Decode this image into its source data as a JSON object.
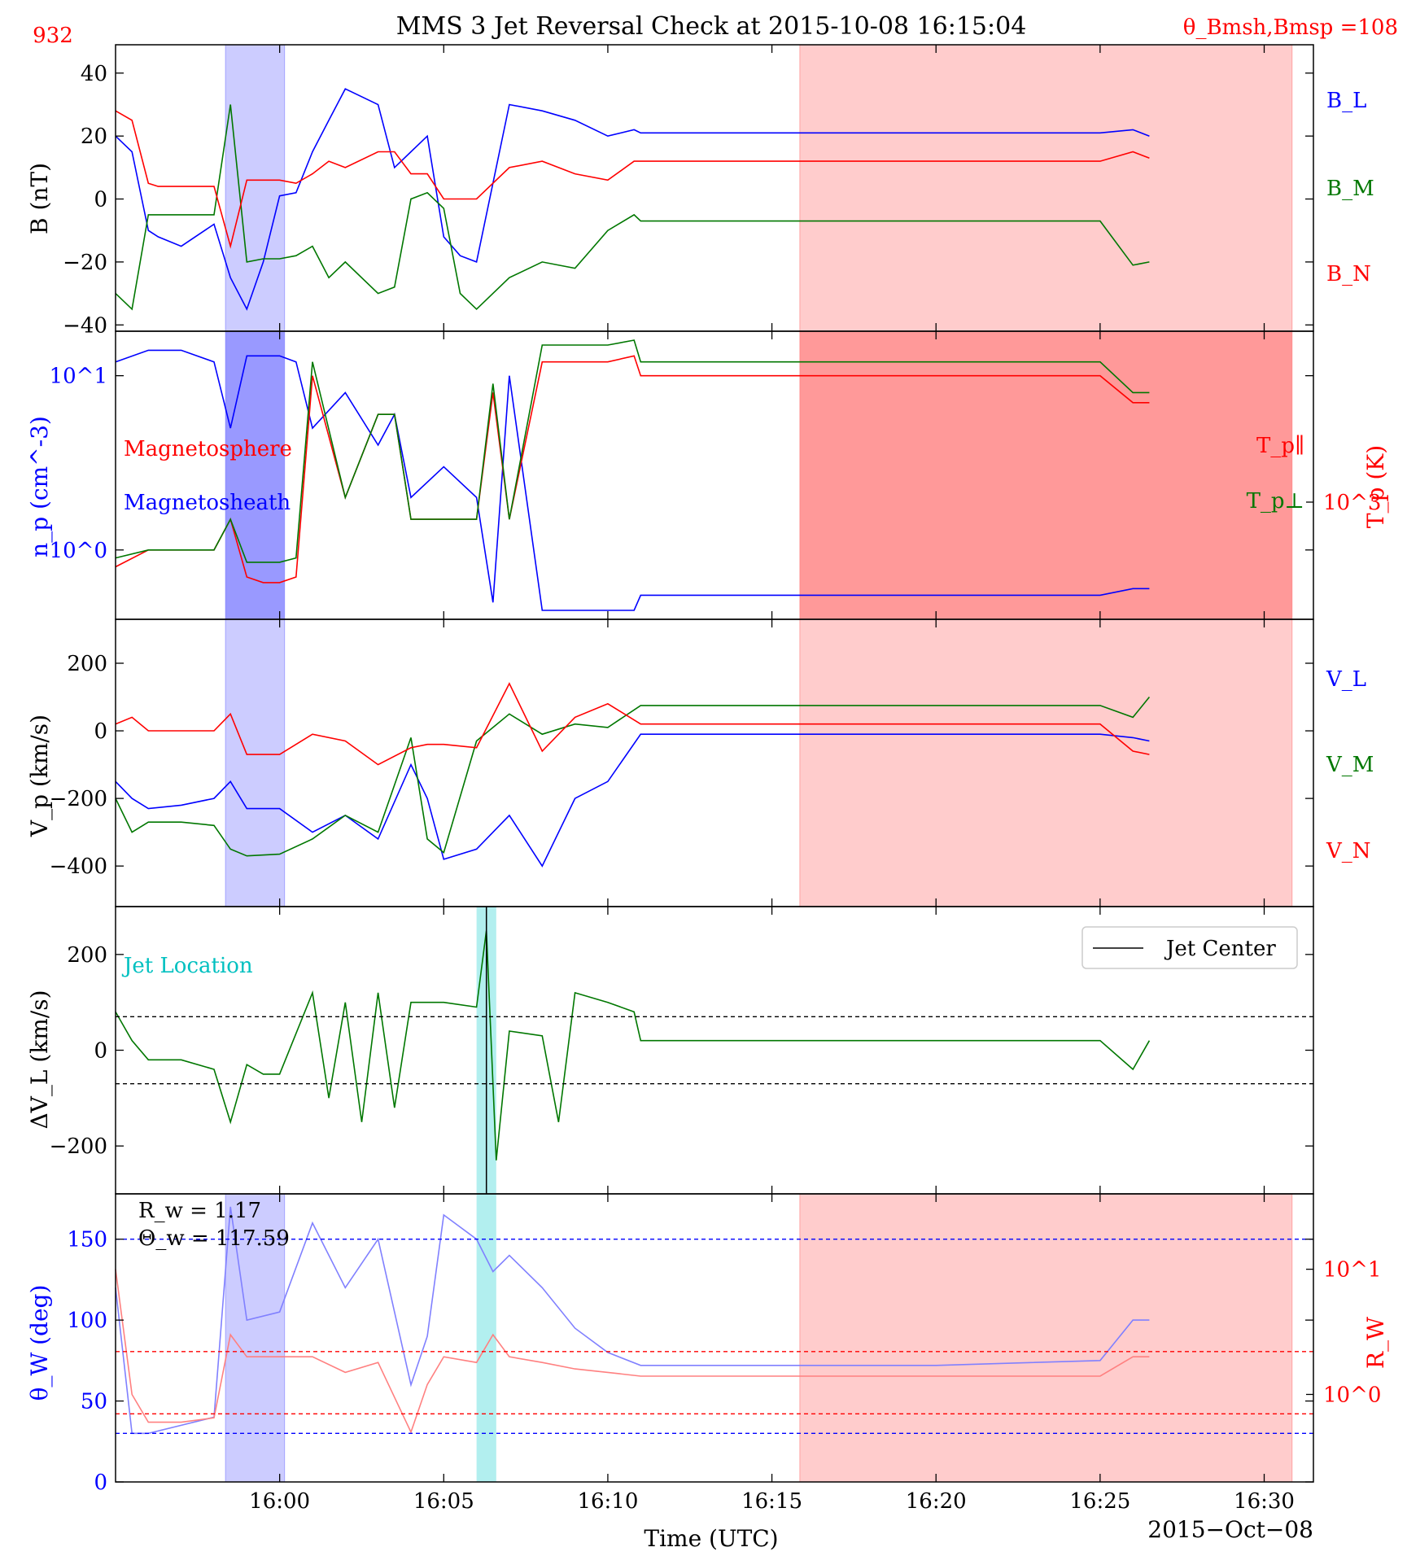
{
  "figure": {
    "title": "MMS 3 Jet Reversal Check at 2015-10-08 16:15:04",
    "event_id": "932",
    "theta_label": "θ_Bmsh,Bmsp =108",
    "xlabel": "Time (UTC)",
    "date_label": "2015−Oct−08",
    "colors": {
      "blue": "#0000ff",
      "red": "#ff0000",
      "green": "#007700",
      "cyan": "#00c0c0",
      "msh_band": "#b3b3ff",
      "msp_band": "#ffb3b3"
    }
  },
  "chart_data": [
    {
      "type": "line",
      "panel": "B",
      "ylabel": "B (nT)",
      "ylim": [
        -42,
        49
      ],
      "yticks": [
        "40",
        "20",
        "0",
        "−20",
        "−40"
      ],
      "ytick_values": [
        40,
        20,
        0,
        -20,
        -40
      ],
      "legend": [
        "B_L",
        "B_M",
        "B_N"
      ],
      "series": [
        {
          "name": "B_L",
          "color": "#0000ff",
          "x": [
            0,
            0.5,
            1,
            1.3,
            2,
            3,
            3.5,
            4,
            4.5,
            5,
            5.5,
            6,
            6.5,
            7,
            8,
            8.5,
            9,
            9.5,
            10,
            10.5,
            11,
            12,
            13,
            14,
            15,
            15.8,
            16,
            20,
            25,
            30,
            31,
            31.5
          ],
          "y": [
            20,
            15,
            -10,
            -12,
            -15,
            -8,
            -25,
            -35,
            -20,
            1,
            2,
            15,
            25,
            35,
            30,
            10,
            15,
            20,
            -12,
            -18,
            -20,
            30,
            28,
            25,
            20,
            22,
            21,
            21,
            21,
            21,
            22,
            20
          ]
        },
        {
          "name": "B_M",
          "color": "#007700",
          "x": [
            0,
            0.5,
            1,
            1.3,
            2,
            3,
            3.5,
            4,
            4.5,
            5,
            5.5,
            6,
            6.5,
            7,
            8,
            8.5,
            9,
            9.5,
            10,
            10.5,
            11,
            12,
            13,
            14,
            15,
            15.8,
            16,
            20,
            25,
            30,
            31,
            31.5
          ],
          "y": [
            -30,
            -35,
            -5,
            -5,
            -5,
            -5,
            30,
            -20,
            -19,
            -19,
            -18,
            -15,
            -25,
            -20,
            -30,
            -28,
            0,
            2,
            -3,
            -30,
            -35,
            -25,
            -20,
            -22,
            -10,
            -5,
            -7,
            -7,
            -7,
            -7,
            -21,
            -20
          ]
        },
        {
          "name": "B_N",
          "color": "#ff0000",
          "x": [
            0,
            0.5,
            1,
            1.3,
            2,
            3,
            3.5,
            4,
            4.5,
            5,
            5.5,
            6,
            6.5,
            7,
            8,
            8.5,
            9,
            9.5,
            10,
            10.5,
            11,
            12,
            13,
            14,
            15,
            15.8,
            16,
            20,
            25,
            30,
            31,
            31.5
          ],
          "y": [
            28,
            25,
            5,
            4,
            4,
            4,
            -15,
            6,
            6,
            6,
            5,
            8,
            12,
            10,
            15,
            15,
            8,
            8,
            0,
            0,
            0,
            10,
            12,
            8,
            6,
            12,
            12,
            12,
            12,
            12,
            15,
            13
          ]
        }
      ]
    },
    {
      "type": "line",
      "panel": "density_temperature",
      "ylabel": "n_p (cm^-3)",
      "y2label": "T_p (K)",
      "ylim": [
        0.4,
        18
      ],
      "yscale": "log",
      "yticks": [
        "10^1",
        "10^0"
      ],
      "ytick_values": [
        10,
        1
      ],
      "y2ticks": [
        "10^3"
      ],
      "annotations": [
        "Magnetosphere",
        "Magnetosheath"
      ],
      "legend": [
        "T_p∥",
        "T_p⊥"
      ],
      "series": [
        {
          "name": "n_p",
          "color": "#0000ff",
          "x": [
            0,
            1,
            2,
            3,
            3.5,
            4,
            4.5,
            5,
            5.5,
            6,
            7,
            8,
            8.5,
            9,
            10,
            11,
            11.5,
            12,
            13,
            14,
            15,
            15.8,
            16,
            20,
            25,
            30,
            31,
            31.5
          ],
          "y": [
            12,
            14,
            14,
            12,
            5,
            13,
            13,
            13,
            12,
            5,
            8,
            4,
            6,
            2,
            3,
            2,
            0.5,
            10,
            0.45,
            0.45,
            0.45,
            0.45,
            0.55,
            0.55,
            0.55,
            0.55,
            0.6,
            0.6
          ]
        },
        {
          "name": "T_p∥",
          "color": "#ff0000",
          "x": [
            0,
            1,
            2,
            3,
            3.5,
            4,
            4.5,
            5,
            5.5,
            6,
            7,
            8,
            8.5,
            9,
            10,
            11,
            11.5,
            12,
            13,
            14,
            15,
            15.8,
            16,
            20,
            25,
            30,
            31,
            31.5
          ],
          "y": [
            0.8,
            1.0,
            1.0,
            1.0,
            1.5,
            0.7,
            0.65,
            0.65,
            0.7,
            10,
            2,
            6,
            6,
            1.5,
            1.5,
            1.5,
            8,
            1.5,
            12,
            12,
            12,
            13,
            10,
            10,
            10,
            10,
            7,
            7
          ]
        },
        {
          "name": "T_p⊥",
          "color": "#007700",
          "x": [
            0,
            1,
            2,
            3,
            3.5,
            4,
            4.5,
            5,
            5.5,
            6,
            7,
            8,
            8.5,
            9,
            10,
            11,
            11.5,
            12,
            13,
            14,
            15,
            15.8,
            16,
            20,
            25,
            30,
            31,
            31.5
          ],
          "y": [
            0.9,
            1.0,
            1.0,
            1.0,
            1.5,
            0.85,
            0.85,
            0.85,
            0.9,
            12,
            2,
            6,
            6,
            1.5,
            1.5,
            1.5,
            9,
            1.5,
            15,
            15,
            15,
            16,
            12,
            12,
            12,
            12,
            8,
            8
          ]
        }
      ]
    },
    {
      "type": "line",
      "panel": "V",
      "ylabel": "V_p (km/s)",
      "ylim": [
        -520,
        330
      ],
      "yticks": [
        "200",
        "0",
        "−200",
        "−400"
      ],
      "ytick_values": [
        200,
        0,
        -200,
        -400
      ],
      "legend": [
        "V_L",
        "V_M",
        "V_N"
      ],
      "series": [
        {
          "name": "V_L",
          "color": "#0000ff",
          "x": [
            0,
            0.5,
            1,
            2,
            3,
            3.5,
            4,
            5,
            6,
            7,
            8,
            9,
            9.5,
            10,
            11,
            12,
            13,
            14,
            15,
            16,
            20,
            25,
            30,
            31,
            31.5
          ],
          "y": [
            -150,
            -200,
            -230,
            -220,
            -200,
            -150,
            -230,
            -230,
            -300,
            -250,
            -320,
            -100,
            -200,
            -380,
            -350,
            -250,
            -400,
            -200,
            -150,
            -10,
            -10,
            -10,
            -10,
            -20,
            -30
          ]
        },
        {
          "name": "V_M",
          "color": "#007700",
          "x": [
            0,
            0.5,
            1,
            2,
            3,
            3.5,
            4,
            5,
            6,
            7,
            8,
            9,
            9.5,
            10,
            11,
            12,
            13,
            14,
            15,
            16,
            20,
            25,
            30,
            31,
            31.5
          ],
          "y": [
            -200,
            -300,
            -270,
            -270,
            -280,
            -350,
            -370,
            -365,
            -320,
            -250,
            -300,
            -20,
            -320,
            -360,
            -30,
            50,
            -10,
            20,
            10,
            75,
            75,
            75,
            75,
            40,
            100
          ]
        },
        {
          "name": "V_N",
          "color": "#ff0000",
          "x": [
            0,
            0.5,
            1,
            2,
            3,
            3.5,
            4,
            5,
            6,
            7,
            8,
            9,
            9.5,
            10,
            11,
            12,
            13,
            14,
            15,
            16,
            20,
            25,
            30,
            31,
            31.5
          ],
          "y": [
            20,
            40,
            0,
            0,
            0,
            50,
            -70,
            -70,
            -10,
            -30,
            -100,
            -50,
            -40,
            -40,
            -50,
            140,
            -60,
            40,
            80,
            20,
            20,
            20,
            20,
            -60,
            -70
          ]
        }
      ]
    },
    {
      "type": "line",
      "panel": "dVL",
      "ylabel": "ΔV_L (km/s)",
      "ylim": [
        -300,
        300
      ],
      "yticks": [
        "200",
        "0",
        "−200"
      ],
      "ytick_values": [
        200,
        0,
        -200
      ],
      "thresholds": [
        70,
        -70
      ],
      "jet_center_x": 11.3,
      "jet_band": [
        11.0,
        11.6
      ],
      "annotations": [
        "Jet Location"
      ],
      "legend": [
        "Jet Center"
      ],
      "series": [
        {
          "name": "dVL",
          "color": "#007700",
          "x": [
            0,
            0.5,
            1,
            2,
            3,
            3.5,
            4,
            4.5,
            5,
            6,
            6.5,
            7,
            7.5,
            8,
            8.5,
            9,
            10,
            11,
            11.3,
            11.6,
            12,
            13,
            13.5,
            14,
            15,
            15.8,
            16,
            20,
            25,
            30,
            31,
            31.5
          ],
          "y": [
            80,
            20,
            -20,
            -20,
            -40,
            -150,
            -30,
            -50,
            -50,
            120,
            -100,
            100,
            -150,
            120,
            -120,
            100,
            100,
            90,
            250,
            -230,
            40,
            30,
            -150,
            120,
            100,
            80,
            20,
            20,
            20,
            20,
            -40,
            20
          ]
        }
      ]
    },
    {
      "type": "line",
      "panel": "theta_R",
      "ylabel": "θ_W (deg)",
      "y2label": "R_W",
      "ylim": [
        0,
        178
      ],
      "yticks": [
        "150",
        "100",
        "50",
        "0"
      ],
      "ytick_values": [
        150,
        100,
        50,
        0
      ],
      "y2ticks": [
        "10^1",
        "10^0"
      ],
      "annotations": [
        "R_w = 1.17",
        "Θ_w = 117.59"
      ],
      "thresholds_theta": [
        150,
        30
      ],
      "thresholds_R": [
        2.2,
        0.7
      ],
      "series": [
        {
          "name": "θ_W",
          "color": "#8080ff",
          "x": [
            0,
            0.5,
            1,
            2,
            3,
            3.5,
            4,
            5,
            6,
            7,
            8,
            9,
            9.5,
            10,
            11,
            11.5,
            12,
            13,
            14,
            15,
            16,
            20,
            25,
            30,
            31,
            31.5
          ],
          "y": [
            120,
            30,
            30,
            35,
            40,
            170,
            100,
            105,
            160,
            120,
            150,
            60,
            90,
            165,
            150,
            130,
            140,
            120,
            95,
            80,
            72,
            72,
            72,
            75,
            100,
            100
          ]
        },
        {
          "name": "R_W",
          "color": "#ff8080",
          "x": [
            0,
            0.5,
            1,
            2,
            3,
            3.5,
            4,
            5,
            6,
            7,
            8,
            9,
            9.5,
            10,
            11,
            11.5,
            12,
            13,
            14,
            15,
            16,
            20,
            25,
            30,
            31,
            31.5
          ],
          "y": [
            10,
            1.0,
            0.6,
            0.6,
            0.65,
            3,
            2.0,
            2.0,
            2.0,
            1.5,
            1.8,
            0.5,
            1.2,
            2.0,
            1.8,
            3.0,
            2.0,
            1.8,
            1.6,
            1.5,
            1.4,
            1.4,
            1.4,
            1.4,
            2.0,
            2.0
          ]
        }
      ]
    }
  ],
  "xaxis": {
    "ticks": [
      "16:00",
      "16:05",
      "16:10",
      "16:15",
      "16:20",
      "16:25",
      "16:30"
    ],
    "tick_values": [
      5,
      10,
      15,
      20,
      25,
      30,
      35
    ],
    "xlim": [
      0,
      36.5
    ],
    "msh_band": [
      3.35,
      5.15
    ],
    "msp_band": [
      20.85,
      35.85
    ]
  }
}
